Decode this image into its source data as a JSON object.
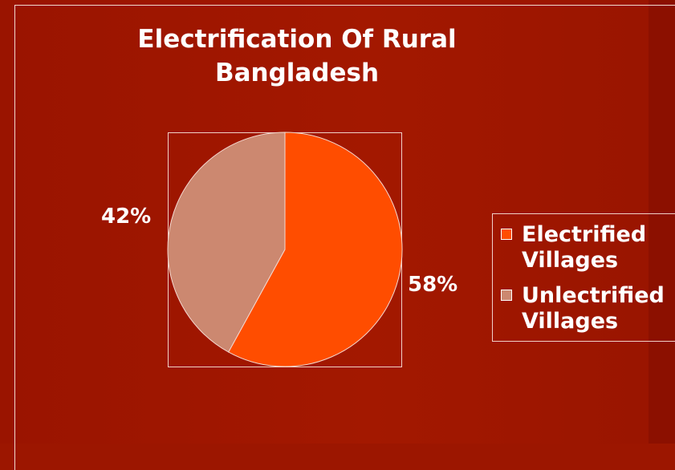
{
  "chart_data": {
    "type": "pie",
    "title": "Electrification Of Rural Bangladesh",
    "categories": [
      "Electrified Villages",
      "Unlectrified Villages"
    ],
    "values": [
      58,
      42
    ],
    "data_labels": [
      "58%",
      "42%"
    ],
    "colors": [
      "#ff4d00",
      "#cc8870"
    ],
    "legend": "right",
    "legend_labels": [
      "Electrified Villages",
      "Unlectrified Villages"
    ]
  }
}
